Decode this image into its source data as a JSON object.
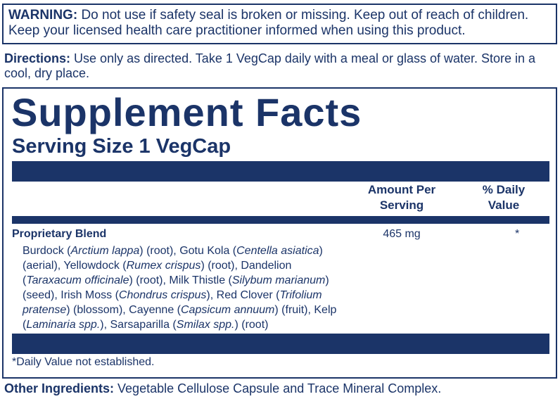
{
  "warning": {
    "label": "WARNING:",
    "text": "Do not use if safety seal is broken or missing. Keep out of reach of children. Keep your licensed health care practitioner informed when using this product."
  },
  "directions": {
    "label": "Directions:",
    "text": "Use only as directed. Take 1 VegCap daily with a meal or glass of water. Store in a cool, dry place."
  },
  "facts": {
    "title": "Supplement Facts",
    "serving_size": "Serving Size 1 VegCap",
    "columns": [
      "Amount Per Serving",
      "% Daily Value"
    ],
    "rows": [
      {
        "name": "Proprietary Blend",
        "amount": "465 mg",
        "daily_value": "*"
      }
    ],
    "ingredients": [
      "Burdock (",
      "Arctium lappa",
      ") (root), Gotu Kola (",
      "Centella asiatica",
      ") (aerial), Yellowdock (",
      "Rumex crispus",
      ") (root), Dandelion (",
      "Taraxacum officinale",
      ") (root), Milk Thistle (",
      "Silybum marianum",
      ") (seed), Irish Moss (",
      "Chondrus crispus",
      "), Red Clover (",
      "Trifolium pratense",
      ") (blossom), Cayenne (",
      "Capsicum annuum",
      ") (fruit), Kelp (",
      "Laminaria spp.",
      "), Sarsaparilla (",
      "Smilax spp.",
      ") (root)"
    ],
    "footnote": "*Daily Value not established."
  },
  "other_ingredients": {
    "label": "Other Ingredients:",
    "text": "Vegetable Cellulose Capsule and Trace Mineral Complex."
  }
}
